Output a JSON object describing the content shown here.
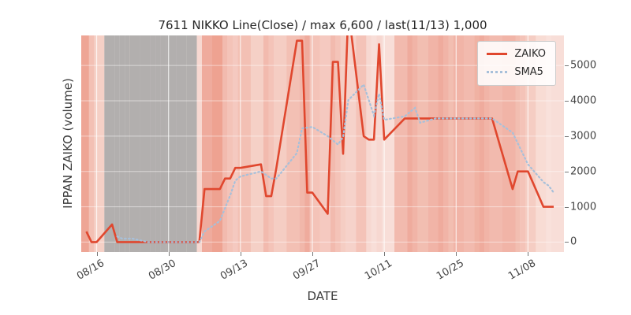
{
  "title": "7611 NIKKO Line(Close) / max 6,600 / last(11/13) 1,000",
  "axes": {
    "xlabel": "DATE",
    "ylabel": "IPPAN ZAIKO (volume)"
  },
  "chart_data": {
    "type": "line",
    "x_dates": [
      "08/14",
      "08/15",
      "08/16",
      "08/19",
      "08/20",
      "08/21",
      "08/22",
      "08/23",
      "08/26",
      "08/27",
      "08/28",
      "08/29",
      "08/30",
      "09/02",
      "09/03",
      "09/04",
      "09/05",
      "09/06",
      "09/09",
      "09/10",
      "09/11",
      "09/12",
      "09/13",
      "09/17",
      "09/18",
      "09/19",
      "09/20",
      "09/24",
      "09/25",
      "09/26",
      "09/27",
      "09/30",
      "10/01",
      "10/02",
      "10/03",
      "10/04",
      "10/07",
      "10/08",
      "10/09",
      "10/10",
      "10/11",
      "10/15",
      "10/16",
      "10/17",
      "10/18",
      "10/21",
      "10/22",
      "10/23",
      "10/24",
      "10/25",
      "10/28",
      "10/29",
      "10/30",
      "10/31",
      "11/01",
      "11/05",
      "11/06",
      "11/07",
      "11/08",
      "11/11",
      "11/12",
      "11/13"
    ],
    "series": [
      {
        "name": "ZAIKO",
        "style": "solid",
        "color": "#e0472e",
        "values": [
          300,
          0,
          0,
          500,
          0,
          0,
          0,
          0,
          0,
          0,
          0,
          0,
          0,
          0,
          0,
          0,
          0,
          1500,
          1500,
          1800,
          1800,
          2100,
          2100,
          2200,
          1300,
          1300,
          2100,
          5700,
          5700,
          1400,
          1400,
          800,
          5100,
          5100,
          2500,
          6600,
          3000,
          2900,
          2900,
          5600,
          2900,
          3500,
          3500,
          3500,
          3500,
          3500,
          3500,
          3500,
          3500,
          3500,
          3500,
          3500,
          3500,
          3500,
          3500,
          1500,
          2000,
          2000,
          2000,
          1000,
          1000,
          1000
        ]
      },
      {
        "name": "SMA5",
        "style": "dotted",
        "color": "#a7c0da",
        "values": [
          null,
          null,
          null,
          null,
          160,
          100,
          100,
          100,
          0,
          0,
          0,
          0,
          0,
          0,
          0,
          0,
          0,
          300,
          600,
          960,
          1320,
          1740,
          1860,
          2000,
          1900,
          1800,
          1800,
          2520,
          3220,
          3240,
          3260,
          3000,
          2880,
          2760,
          2980,
          4020,
          4460,
          4020,
          3580,
          4200,
          3460,
          3560,
          3680,
          3800,
          3380,
          3500,
          3500,
          3500,
          3500,
          3500,
          3500,
          3500,
          3500,
          3500,
          3500,
          3100,
          2800,
          2500,
          2200,
          1700,
          1600,
          1400
        ]
      }
    ],
    "max_value": 6600,
    "last_value": 1000,
    "last_date": "11/13",
    "xticks": [
      "08/16",
      "08/30",
      "09/13",
      "09/27",
      "10/11",
      "10/25",
      "11/08"
    ],
    "yticks": [
      0,
      1000,
      2000,
      3000,
      4000,
      5000
    ],
    "ylim": [
      -280,
      5850
    ],
    "grid": true,
    "legend_position": "upper right",
    "background_bands": {
      "gray_range": [
        "08/19",
        "09/04"
      ],
      "intensities": [
        0.5,
        0.32,
        0.22,
        0.5,
        0.5,
        0.5,
        0.5,
        0.5,
        0.5,
        0.5,
        0.5,
        0.5,
        0.5,
        0.5,
        0.5,
        0.5,
        0.16,
        0.46,
        0.52,
        0.36,
        0.3,
        0.26,
        0.32,
        0.22,
        0.36,
        0.3,
        0.24,
        0.32,
        0.38,
        0.46,
        0.3,
        0.26,
        0.36,
        0.3,
        0.24,
        0.2,
        0.3,
        0.16,
        0.12,
        0.16,
        0.12,
        0.36,
        0.46,
        0.4,
        0.34,
        0.4,
        0.46,
        0.4,
        0.34,
        0.4,
        0.36,
        0.42,
        0.46,
        0.4,
        0.36,
        0.4,
        0.34,
        0.3,
        0.24,
        0.14,
        0.1,
        0.12
      ]
    },
    "colors": {
      "band": "#e05a3c",
      "gray_band": "#9c9c9c",
      "plot_bg": "#fcf1ee",
      "figure_bg": "#ffffff",
      "gridline": "#ffffff",
      "tick": "#777777"
    }
  }
}
